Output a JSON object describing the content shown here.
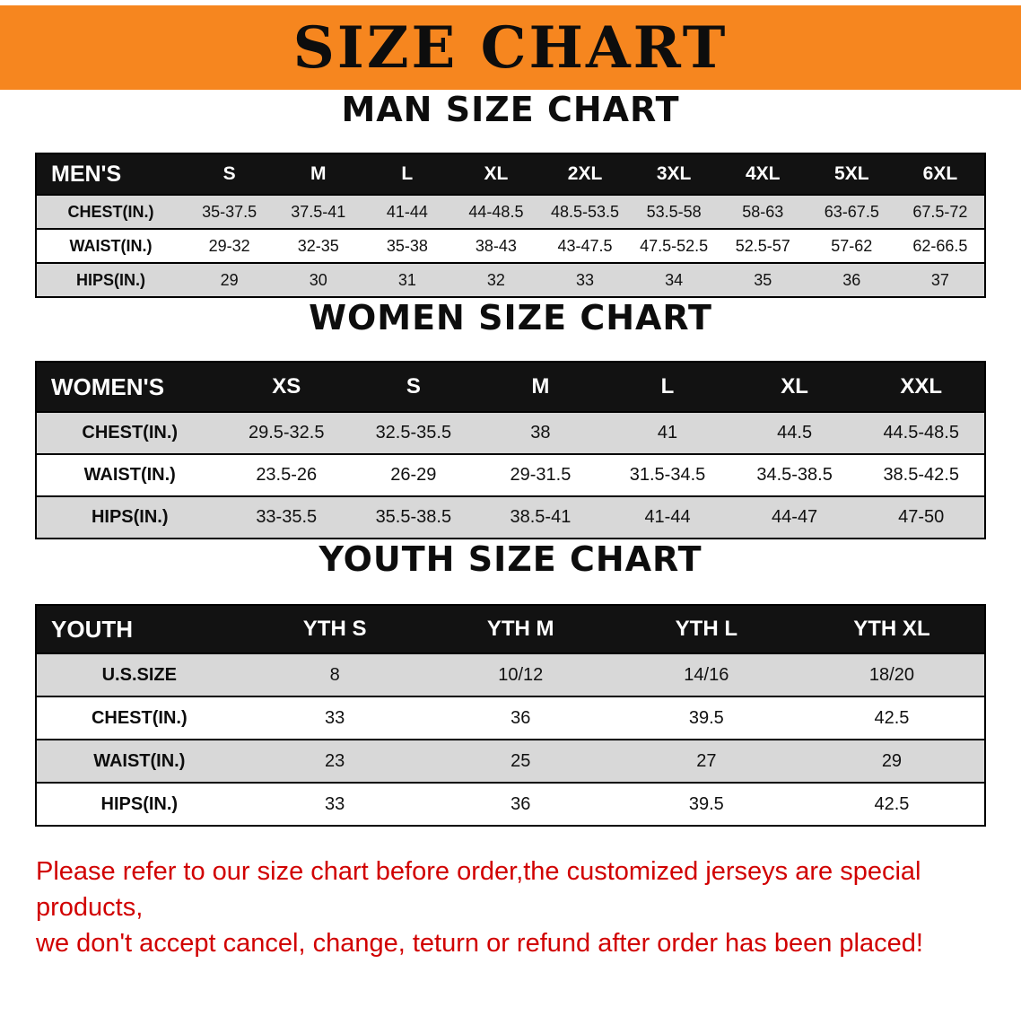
{
  "banner": {
    "title": "SIZE CHART",
    "bg_color": "#F6861F",
    "text_color": "#0d0d0d"
  },
  "colors": {
    "table_header_bg": "#121212",
    "table_stripe": "#d8d8d8",
    "disclaimer_text": "#d10000"
  },
  "sections": [
    {
      "heading": "MAN SIZE CHART",
      "table": {
        "header": [
          "MEN'S",
          "S",
          "M",
          "L",
          "XL",
          "2XL",
          "3XL",
          "4XL",
          "5XL",
          "6XL"
        ],
        "rows": [
          [
            "CHEST(IN.)",
            "35-37.5",
            "37.5-41",
            "41-44",
            "44-48.5",
            "48.5-53.5",
            "53.5-58",
            "58-63",
            "63-67.5",
            "67.5-72"
          ],
          [
            "WAIST(IN.)",
            "29-32",
            "32-35",
            "35-38",
            "38-43",
            "43-47.5",
            "47.5-52.5",
            "52.5-57",
            "57-62",
            "62-66.5"
          ],
          [
            "HIPS(IN.)",
            "29",
            "30",
            "31",
            "32",
            "33",
            "34",
            "35",
            "36",
            "37"
          ]
        ]
      }
    },
    {
      "heading": "WOMEN SIZE CHART",
      "table": {
        "header": [
          "WOMEN'S",
          "XS",
          "S",
          "M",
          "L",
          "XL",
          "XXL"
        ],
        "rows": [
          [
            "CHEST(IN.)",
            "29.5-32.5",
            "32.5-35.5",
            "38",
            "41",
            "44.5",
            "44.5-48.5"
          ],
          [
            "WAIST(IN.)",
            "23.5-26",
            "26-29",
            "29-31.5",
            "31.5-34.5",
            "34.5-38.5",
            "38.5-42.5"
          ],
          [
            "HIPS(IN.)",
            "33-35.5",
            "35.5-38.5",
            "38.5-41",
            "41-44",
            "44-47",
            "47-50"
          ]
        ]
      }
    },
    {
      "heading": "YOUTH SIZE CHART",
      "table": {
        "header": [
          "YOUTH",
          "YTH S",
          "YTH M",
          "YTH L",
          "YTH XL"
        ],
        "rows": [
          [
            "U.S.SIZE",
            "8",
            "10/12",
            "14/16",
            "18/20"
          ],
          [
            "CHEST(IN.)",
            "33",
            "36",
            "39.5",
            "42.5"
          ],
          [
            "WAIST(IN.)",
            "23",
            "25",
            "27",
            "29"
          ],
          [
            "HIPS(IN.)",
            "33",
            "36",
            "39.5",
            "42.5"
          ]
        ]
      }
    }
  ],
  "disclaimer": {
    "line1": "Please refer to our size chart before order,the customized jerseys are special products,",
    "line2": "we don't accept cancel, change, teturn or refund after order has been placed!"
  }
}
